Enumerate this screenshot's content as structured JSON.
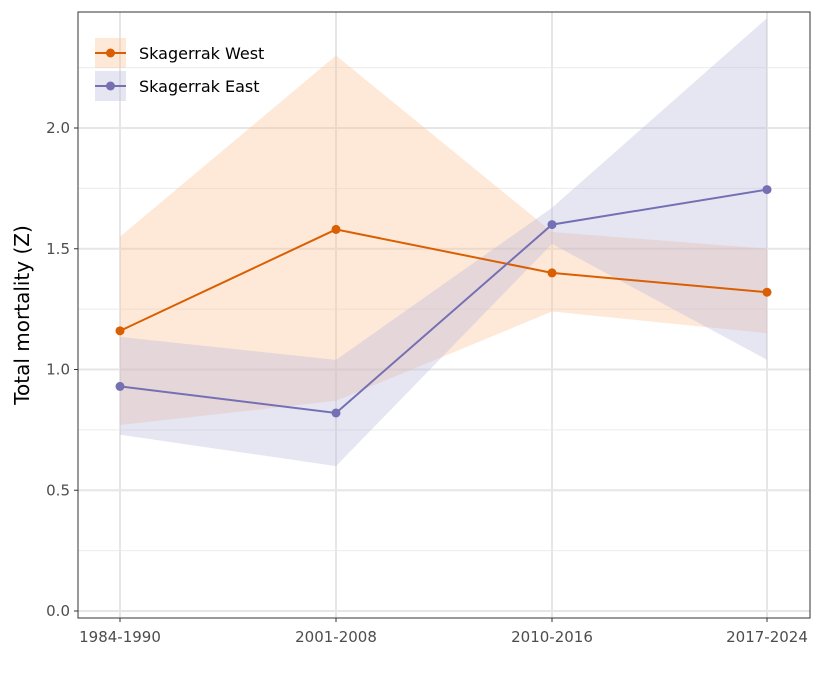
{
  "chart_data": {
    "type": "line",
    "title": "",
    "xlabel": "",
    "ylabel": "Total mortality (Z)",
    "categories": [
      "1984-1990",
      "2001-2008",
      "2010-2016",
      "2017-2024"
    ],
    "ylim": [
      -0.03,
      2.51
    ],
    "yticks": [
      0.0,
      0.5,
      1.0,
      1.5,
      2.0
    ],
    "ytick_labels": [
      "0.0",
      "0.5",
      "1.0",
      "1.5",
      "2.0"
    ],
    "grid": true,
    "legend_position": "top-left",
    "series": [
      {
        "name": "Skagerrak West",
        "color": "#D95F02",
        "ribbon_color": "#FDBF8F",
        "values": [
          1.16,
          1.58,
          1.4,
          1.32
        ],
        "lower": [
          0.77,
          0.87,
          1.24,
          1.15
        ],
        "upper": [
          1.55,
          2.3,
          1.57,
          1.5
        ]
      },
      {
        "name": "Skagerrak East",
        "color": "#7570B3",
        "ribbon_color": "#B8B8DC",
        "values": [
          0.93,
          0.82,
          1.6,
          1.745
        ],
        "lower": [
          0.73,
          0.6,
          1.52,
          1.04
        ],
        "upper": [
          1.135,
          1.04,
          1.67,
          2.455
        ]
      }
    ]
  }
}
